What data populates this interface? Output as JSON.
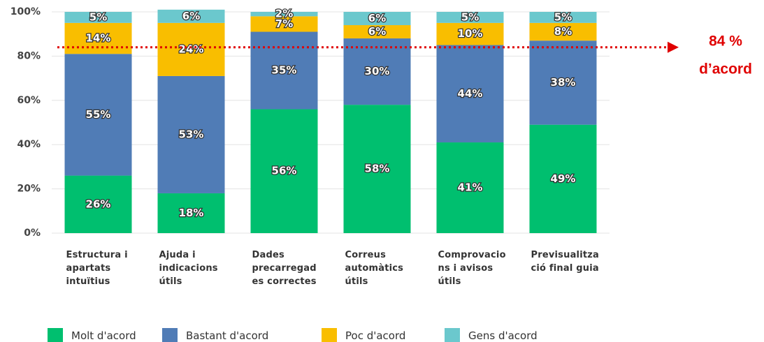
{
  "chart_data": {
    "type": "stacked_bar",
    "categories": [
      "Estructura i apartats intuïtius",
      "Ajuda i indicacions útils",
      "Dades precarregades correctes",
      "Correus automàtics útils",
      "Comprovacions i avisos útils",
      "Previsualització final guia"
    ],
    "series": [
      {
        "name": "Molt d'acord",
        "color": "#00bf6f",
        "values": [
          26,
          18,
          56,
          58,
          41,
          49
        ],
        "value_labels": [
          "26%",
          "18%",
          "56%",
          "58%",
          "41%",
          "49%"
        ]
      },
      {
        "name": "Bastant d'acord",
        "color": "#507cb6",
        "values": [
          55,
          53,
          35,
          30,
          44,
          38
        ],
        "value_labels": [
          "55%",
          "53%",
          "35%",
          "30%",
          "44%",
          "38%"
        ]
      },
      {
        "name": "Poc d'acord",
        "color": "#f9be00",
        "values": [
          14,
          24,
          7,
          6,
          10,
          8
        ],
        "value_labels": [
          "14%",
          "24%",
          "7%",
          "6%",
          "10%",
          "8%"
        ]
      },
      {
        "name": "Gens d'acord",
        "color": "#6bc8cd",
        "values": [
          5,
          6,
          2,
          6,
          5,
          5
        ],
        "value_labels": [
          "5%",
          "6%",
          "2%",
          "6%",
          "5%",
          "5%"
        ]
      }
    ],
    "ylim": [
      0,
      100
    ],
    "yticks": [
      {
        "value": 0,
        "label": "0%"
      },
      {
        "value": 20,
        "label": "20%"
      },
      {
        "value": 40,
        "label": "40%"
      },
      {
        "value": 60,
        "label": "60%"
      },
      {
        "value": 80,
        "label": "80%"
      },
      {
        "value": 100,
        "label": "100%"
      }
    ],
    "grid": true,
    "annotation": {
      "y": 84,
      "lines": [
        "84 %",
        "d’acord"
      ],
      "color": "#e00000"
    }
  }
}
